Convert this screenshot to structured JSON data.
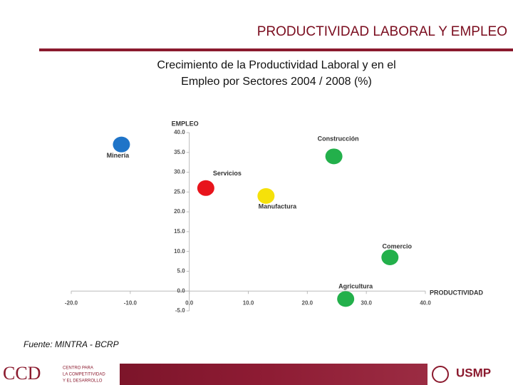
{
  "header": {
    "title": "PRODUCTIVIDAD LABORAL Y EMPLEO"
  },
  "chart_data": {
    "type": "scatter",
    "title": [
      "Crecimiento de la Productividad Laboral y en el",
      "Empleo por Sectores 2004 / 2008 (%)"
    ],
    "x_label": "PRODUCTIVIDAD",
    "y_label": "EMPLEO",
    "xlim": [
      -20,
      40
    ],
    "xticks": [
      {
        "value": -20,
        "label": "-20.0"
      },
      {
        "value": -10,
        "label": "-10.0"
      },
      {
        "value": 0,
        "label": "0.0"
      },
      {
        "value": 10,
        "label": "10.0"
      },
      {
        "value": 20,
        "label": "20.0"
      },
      {
        "value": 30,
        "label": "30.0"
      },
      {
        "value": 40,
        "label": "40.0"
      }
    ],
    "ylim": [
      -5,
      40
    ],
    "yticks": [
      {
        "value": -5,
        "label": "-5.0"
      },
      {
        "value": 0,
        "label": "0.0"
      },
      {
        "value": 5,
        "label": "5.0"
      },
      {
        "value": 10,
        "label": "10.0"
      },
      {
        "value": 15,
        "label": "15.0"
      },
      {
        "value": 20,
        "label": "20.0"
      },
      {
        "value": 25,
        "label": "25.0"
      },
      {
        "value": 30,
        "label": "30.0"
      },
      {
        "value": 35,
        "label": "35.0"
      },
      {
        "value": 40,
        "label": "40.0"
      }
    ],
    "series": [
      {
        "name": "Minería",
        "color": "#1f74c8",
        "x": [
          -11.5
        ],
        "values": [
          37
        ]
      },
      {
        "name": "Servicios",
        "color": "#e8141c",
        "x": [
          2.8
        ],
        "values": [
          26
        ]
      },
      {
        "name": "Manufactura",
        "color": "#f5e10a",
        "x": [
          13
        ],
        "values": [
          24
        ]
      },
      {
        "name": "Construcción",
        "color": "#23b04b",
        "x": [
          24.5
        ],
        "values": [
          34
        ]
      },
      {
        "name": "Comercio",
        "color": "#23b04b",
        "x": [
          34
        ],
        "values": [
          8.5
        ]
      },
      {
        "name": "Agricultura",
        "color": "#23b04b",
        "x": [
          26.5
        ],
        "values": [
          -2
        ]
      }
    ]
  },
  "source": "Fuente: MINTRA - BCRP",
  "footer": {
    "left_logo": "CCD",
    "left_text": [
      "CENTRO PARA",
      "LA COMPETITIVIDAD",
      "Y EL DESARROLLO"
    ],
    "right_logo": "USMP"
  }
}
